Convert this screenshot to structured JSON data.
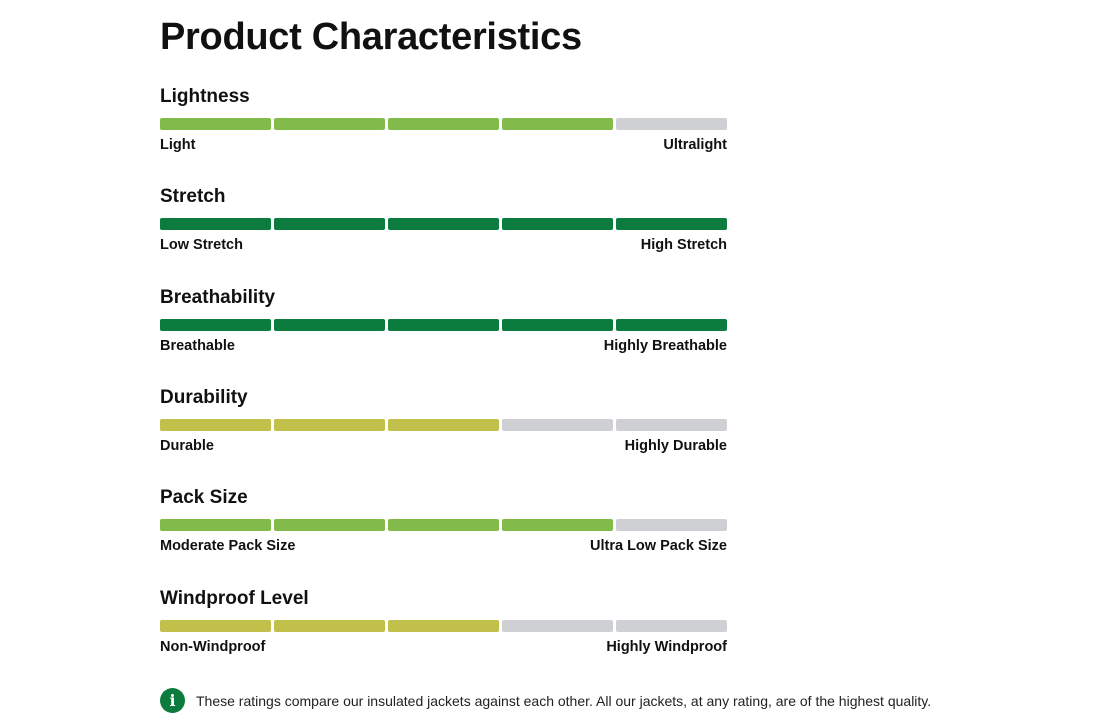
{
  "page": {
    "title": "Product Characteristics"
  },
  "colors": {
    "light_green": "#82bb4a",
    "dark_green": "#0b7b3e",
    "olive": "#c0c04a",
    "empty": "#cfd0d4"
  },
  "characteristics": [
    {
      "title": "Lightness",
      "level": 4,
      "max": 5,
      "color": "#82bb4a",
      "min_label": "Light",
      "max_label": "Ultralight"
    },
    {
      "title": "Stretch",
      "level": 5,
      "max": 5,
      "color": "#0b7b3e",
      "min_label": "Low Stretch",
      "max_label": "High Stretch"
    },
    {
      "title": "Breathability",
      "level": 5,
      "max": 5,
      "color": "#0b7b3e",
      "min_label": "Breathable",
      "max_label": "Highly Breathable"
    },
    {
      "title": "Durability",
      "level": 3,
      "max": 5,
      "color": "#c0c04a",
      "min_label": "Durable",
      "max_label": "Highly Durable"
    },
    {
      "title": "Pack Size",
      "level": 4,
      "max": 5,
      "color": "#82bb4a",
      "min_label": "Moderate Pack Size",
      "max_label": "Ultra Low Pack Size"
    },
    {
      "title": "Windproof Level",
      "level": 3,
      "max": 5,
      "color": "#c0c04a",
      "min_label": "Non-Windproof",
      "max_label": "Highly Windproof"
    }
  ],
  "note": {
    "icon": "info-icon",
    "text": "These ratings compare our insulated jackets against each other. All our jackets, at any rating, are of the highest quality."
  }
}
